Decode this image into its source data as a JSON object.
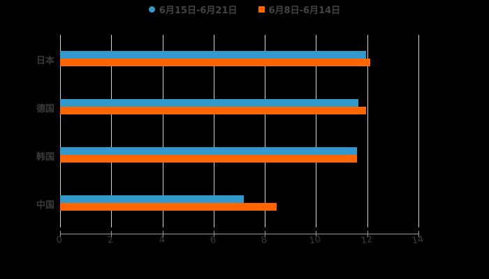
{
  "chart_data": {
    "type": "bar",
    "orientation": "horizontal",
    "title": "",
    "categories": [
      "日本",
      "德国",
      "韩国",
      "中国"
    ],
    "series": [
      {
        "name": "6月15日-6月21日",
        "color": "#3399CC",
        "marker": "circle",
        "values": [
          11.94,
          11.64,
          11.6,
          7.19
        ]
      },
      {
        "name": "6月8日-6月14日",
        "color": "#FF6600",
        "marker": "square",
        "values": [
          12.13,
          11.94,
          11.6,
          8.47
        ]
      }
    ],
    "xlabel": "",
    "ylabel": "",
    "xlim": [
      0,
      14
    ],
    "xticks": [
      "0",
      "2",
      "4",
      "6",
      "8",
      "10",
      "12",
      "14"
    ],
    "grid": true,
    "legend_position": "top"
  },
  "legend": {
    "items": [
      {
        "label": "6月15日-6月21日",
        "color": "#3399CC"
      },
      {
        "label": "6月8日-6月14日",
        "color": "#FF6600"
      }
    ]
  }
}
